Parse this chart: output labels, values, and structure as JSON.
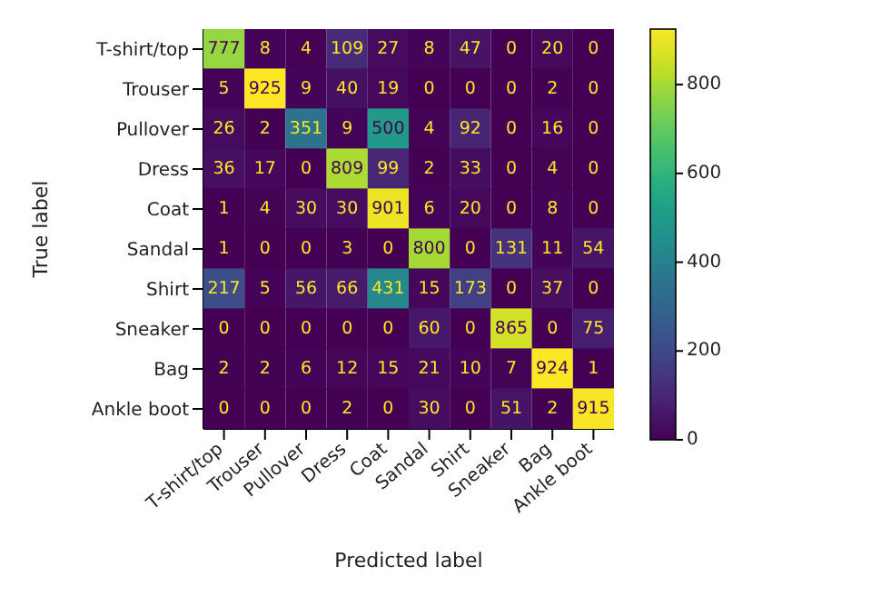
{
  "chart_data": {
    "type": "heatmap",
    "xlabel": "Predicted label",
    "ylabel": "True label",
    "categories": [
      "T-shirt/top",
      "Trouser",
      "Pullover",
      "Dress",
      "Coat",
      "Sandal",
      "Shirt",
      "Sneaker",
      "Bag",
      "Ankle boot"
    ],
    "y_categories": [
      "T-shirt/top",
      "Trouser",
      "Pullover",
      "Dress",
      "Coat",
      "Sandal",
      "Shirt",
      "Sneaker",
      "Bag",
      "Ankle boot"
    ],
    "cells": [
      [
        777,
        8,
        4,
        109,
        27,
        8,
        47,
        0,
        20,
        0
      ],
      [
        5,
        925,
        9,
        40,
        19,
        0,
        0,
        0,
        2,
        0
      ],
      [
        26,
        2,
        351,
        9,
        500,
        4,
        92,
        0,
        16,
        0
      ],
      [
        36,
        17,
        0,
        809,
        99,
        2,
        33,
        0,
        4,
        0
      ],
      [
        1,
        4,
        30,
        30,
        901,
        6,
        20,
        0,
        8,
        0
      ],
      [
        1,
        0,
        0,
        3,
        0,
        800,
        0,
        131,
        11,
        54
      ],
      [
        217,
        5,
        56,
        66,
        431,
        15,
        173,
        0,
        37,
        0
      ],
      [
        0,
        0,
        0,
        0,
        0,
        60,
        0,
        865,
        0,
        75
      ],
      [
        2,
        2,
        6,
        12,
        15,
        21,
        10,
        7,
        924,
        1
      ],
      [
        0,
        0,
        0,
        2,
        0,
        30,
        0,
        51,
        2,
        915
      ]
    ],
    "data_labels": true,
    "clim": [
      0,
      925
    ],
    "cticks": [
      0,
      200,
      400,
      600,
      800
    ]
  }
}
